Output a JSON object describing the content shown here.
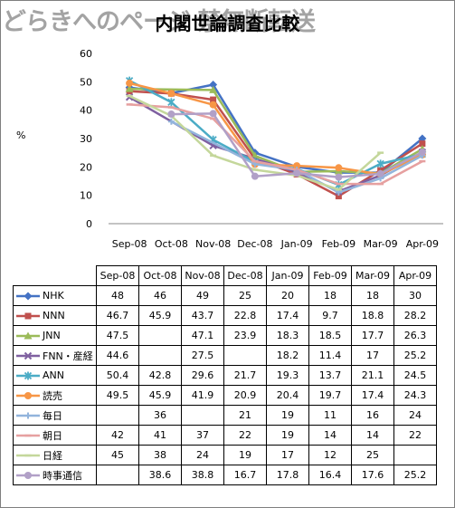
{
  "watermark": "どらきへのページ 禁無断転送",
  "chart_data": {
    "type": "line",
    "title": "内閣世論調査比較",
    "ylabel": "%",
    "xlabel": "",
    "ylim": [
      0,
      60
    ],
    "yticks": [
      0,
      10,
      20,
      30,
      40,
      50,
      60
    ],
    "grid": false,
    "legend": "table-below",
    "categories": [
      "Sep-08",
      "Oct-08",
      "Nov-08",
      "Dec-08",
      "Jan-09",
      "Feb-09",
      "Mar-09",
      "Apr-09"
    ],
    "series": [
      {
        "name": "NHK",
        "color": "#4472c4",
        "marker": "diamond",
        "values": [
          48,
          46,
          49,
          25,
          20,
          18,
          18,
          30
        ]
      },
      {
        "name": "NNN",
        "color": "#c0504d",
        "marker": "square",
        "values": [
          46.7,
          45.9,
          43.7,
          22.8,
          17.4,
          9.7,
          18.8,
          28.2
        ]
      },
      {
        "name": "JNN",
        "color": "#9bbb59",
        "marker": "triangle",
        "values": [
          47.5,
          null,
          47.1,
          23.9,
          18.3,
          18.5,
          17.7,
          26.3
        ]
      },
      {
        "name": "FNN・産経",
        "color": "#7f60a0",
        "marker": "x",
        "values": [
          44.6,
          null,
          27.5,
          null,
          18.2,
          11.4,
          17,
          25.2
        ]
      },
      {
        "name": "ANN",
        "color": "#4bacc6",
        "marker": "star",
        "values": [
          50.4,
          42.8,
          29.6,
          21.7,
          19.3,
          13.7,
          21.1,
          24.5
        ]
      },
      {
        "name": "読売",
        "color": "#f79646",
        "marker": "circle",
        "values": [
          49.5,
          45.9,
          41.9,
          20.9,
          20.4,
          19.7,
          17.4,
          24.3
        ]
      },
      {
        "name": "毎日",
        "color": "#92b4dc",
        "marker": "plus",
        "values": [
          null,
          36,
          null,
          21,
          19,
          11,
          16,
          24
        ]
      },
      {
        "name": "朝日",
        "color": "#e6a0a0",
        "marker": "dash",
        "values": [
          42,
          41,
          37,
          22,
          19,
          14,
          14,
          22
        ]
      },
      {
        "name": "日経",
        "color": "#c4d79b",
        "marker": "dash",
        "values": [
          45,
          38,
          24,
          19,
          17,
          12,
          25,
          null
        ]
      },
      {
        "name": "時事通信",
        "color": "#b1a0c7",
        "marker": "circle",
        "values": [
          null,
          38.6,
          38.8,
          16.7,
          17.8,
          16.4,
          17.6,
          25.2
        ]
      }
    ]
  }
}
